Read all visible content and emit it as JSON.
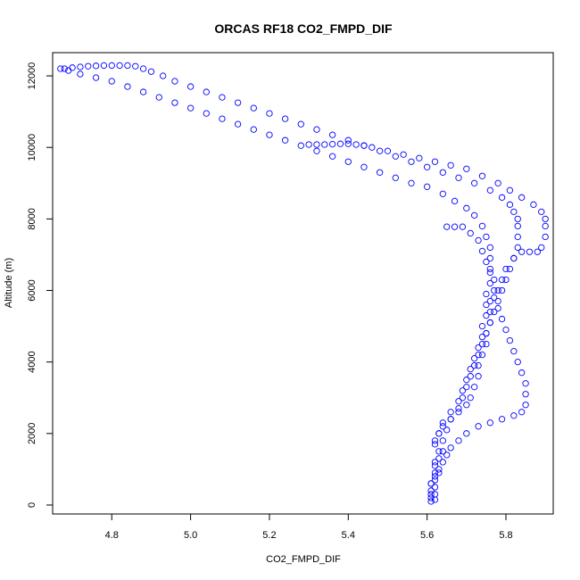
{
  "chart_data": {
    "type": "scatter",
    "title": "ORCAS RF18 CO2_FMPD_DIF",
    "xlabel": "CO2_FMPD_DIF",
    "ylabel": "Altitude (m)",
    "xlim": [
      4.65,
      5.92
    ],
    "ylim": [
      -250,
      12650
    ],
    "x_ticks": [
      4.8,
      5.0,
      5.2,
      5.4,
      5.6,
      5.8
    ],
    "x_tick_labels": [
      "4.8",
      "5.0",
      "5.2",
      "5.4",
      "5.6",
      "5.8"
    ],
    "y_ticks": [
      0,
      2000,
      4000,
      6000,
      8000,
      10000,
      12000
    ],
    "y_tick_labels": [
      "0",
      "2000",
      "4000",
      "6000",
      "8000",
      "10000",
      "12000"
    ],
    "grid": false,
    "marker": "open-circle",
    "marker_color": "#0000ff",
    "series": [
      {
        "points": [
          [
            5.61,
            100
          ],
          [
            5.61,
            300
          ],
          [
            5.62,
            500
          ],
          [
            5.62,
            700
          ],
          [
            5.63,
            900
          ],
          [
            5.62,
            1100
          ],
          [
            5.63,
            1300
          ],
          [
            5.64,
            1500
          ],
          [
            5.62,
            1700
          ],
          [
            5.63,
            2000
          ],
          [
            5.64,
            2200
          ],
          [
            5.66,
            2400
          ],
          [
            5.68,
            2600
          ],
          [
            5.7,
            2800
          ],
          [
            5.71,
            3000
          ],
          [
            5.72,
            3300
          ],
          [
            5.73,
            3600
          ],
          [
            5.73,
            3900
          ],
          [
            5.74,
            4200
          ],
          [
            5.75,
            4500
          ],
          [
            5.75,
            4800
          ],
          [
            5.76,
            5100
          ],
          [
            5.76,
            5400
          ],
          [
            5.76,
            5700
          ],
          [
            5.77,
            6000
          ],
          [
            5.77,
            6300
          ],
          [
            5.76,
            6600
          ],
          [
            5.76,
            6900
          ],
          [
            5.76,
            7200
          ],
          [
            5.75,
            7500
          ],
          [
            5.74,
            7800
          ],
          [
            5.72,
            8100
          ],
          [
            5.7,
            8300
          ],
          [
            5.67,
            8500
          ],
          [
            5.64,
            8700
          ],
          [
            5.6,
            8900
          ],
          [
            5.56,
            9000
          ],
          [
            5.52,
            9150
          ],
          [
            5.48,
            9300
          ],
          [
            5.44,
            9450
          ],
          [
            5.4,
            9600
          ],
          [
            5.36,
            9750
          ],
          [
            5.32,
            9900
          ],
          [
            5.28,
            10050
          ],
          [
            5.24,
            10200
          ],
          [
            5.2,
            10350
          ],
          [
            5.16,
            10500
          ],
          [
            5.12,
            10650
          ],
          [
            5.08,
            10800
          ],
          [
            5.04,
            10950
          ],
          [
            5.0,
            11100
          ],
          [
            4.96,
            11250
          ],
          [
            4.92,
            11400
          ],
          [
            4.88,
            11550
          ],
          [
            4.84,
            11700
          ],
          [
            4.8,
            11850
          ],
          [
            4.76,
            11950
          ],
          [
            4.72,
            12050
          ],
          [
            4.69,
            12150
          ],
          [
            4.67,
            12200
          ],
          [
            4.68,
            12200
          ],
          [
            4.7,
            12230
          ],
          [
            4.72,
            12250
          ],
          [
            4.74,
            12270
          ],
          [
            4.76,
            12280
          ],
          [
            4.78,
            12290
          ],
          [
            4.8,
            12290
          ],
          [
            4.82,
            12290
          ],
          [
            4.84,
            12290
          ],
          [
            4.86,
            12270
          ],
          [
            4.88,
            12200
          ],
          [
            4.9,
            12120
          ],
          [
            4.93,
            12000
          ],
          [
            4.96,
            11850
          ],
          [
            5.0,
            11700
          ],
          [
            5.04,
            11550
          ],
          [
            5.08,
            11400
          ],
          [
            5.12,
            11250
          ],
          [
            5.16,
            11100
          ],
          [
            5.2,
            10950
          ],
          [
            5.24,
            10800
          ],
          [
            5.28,
            10650
          ],
          [
            5.32,
            10500
          ],
          [
            5.36,
            10350
          ],
          [
            5.4,
            10200
          ],
          [
            5.44,
            10050
          ],
          [
            5.48,
            9900
          ],
          [
            5.52,
            9750
          ],
          [
            5.56,
            9600
          ],
          [
            5.6,
            9450
          ],
          [
            5.64,
            9300
          ],
          [
            5.68,
            9150
          ],
          [
            5.72,
            9000
          ],
          [
            5.76,
            8800
          ],
          [
            5.79,
            8600
          ],
          [
            5.81,
            8400
          ],
          [
            5.82,
            8200
          ],
          [
            5.83,
            8000
          ],
          [
            5.83,
            7800
          ],
          [
            5.83,
            7500
          ],
          [
            5.83,
            7200
          ],
          [
            5.82,
            6900
          ],
          [
            5.81,
            6600
          ],
          [
            5.8,
            6300
          ],
          [
            5.79,
            6000
          ],
          [
            5.78,
            5700
          ],
          [
            5.77,
            5400
          ],
          [
            5.76,
            5100
          ],
          [
            5.75,
            4800
          ],
          [
            5.74,
            4500
          ],
          [
            5.73,
            4200
          ],
          [
            5.72,
            3900
          ],
          [
            5.71,
            3600
          ],
          [
            5.7,
            3300
          ],
          [
            5.69,
            3000
          ],
          [
            5.68,
            2700
          ],
          [
            5.66,
            2400
          ],
          [
            5.65,
            2100
          ],
          [
            5.64,
            1800
          ],
          [
            5.63,
            1500
          ],
          [
            5.62,
            1200
          ],
          [
            5.62,
            900
          ],
          [
            5.61,
            600
          ],
          [
            5.62,
            300
          ],
          [
            5.62,
            150
          ],
          [
            5.3,
            10080
          ],
          [
            5.32,
            10080
          ],
          [
            5.34,
            10080
          ],
          [
            5.36,
            10090
          ],
          [
            5.38,
            10100
          ],
          [
            5.4,
            10100
          ],
          [
            5.42,
            10080
          ],
          [
            5.44,
            10050
          ],
          [
            5.46,
            10000
          ],
          [
            5.5,
            9900
          ],
          [
            5.54,
            9800
          ],
          [
            5.58,
            9700
          ],
          [
            5.62,
            9600
          ],
          [
            5.66,
            9500
          ],
          [
            5.7,
            9400
          ],
          [
            5.74,
            9200
          ],
          [
            5.78,
            9000
          ],
          [
            5.81,
            8800
          ],
          [
            5.84,
            8600
          ],
          [
            5.87,
            8400
          ],
          [
            5.89,
            8200
          ],
          [
            5.9,
            8000
          ],
          [
            5.9,
            7800
          ],
          [
            5.9,
            7500
          ],
          [
            5.89,
            7200
          ],
          [
            5.88,
            7080
          ],
          [
            5.86,
            7080
          ],
          [
            5.84,
            7080
          ],
          [
            5.82,
            6900
          ],
          [
            5.8,
            6600
          ],
          [
            5.79,
            6300
          ],
          [
            5.78,
            6000
          ],
          [
            5.77,
            5800
          ],
          [
            5.78,
            5500
          ],
          [
            5.79,
            5200
          ],
          [
            5.8,
            4900
          ],
          [
            5.81,
            4600
          ],
          [
            5.82,
            4300
          ],
          [
            5.83,
            4000
          ],
          [
            5.84,
            3700
          ],
          [
            5.85,
            3400
          ],
          [
            5.85,
            3100
          ],
          [
            5.85,
            2800
          ],
          [
            5.84,
            2600
          ],
          [
            5.82,
            2500
          ],
          [
            5.79,
            2400
          ],
          [
            5.76,
            2300
          ],
          [
            5.73,
            2200
          ],
          [
            5.7,
            2000
          ],
          [
            5.68,
            1800
          ],
          [
            5.66,
            1600
          ],
          [
            5.65,
            1400
          ],
          [
            5.64,
            1200
          ],
          [
            5.63,
            1000
          ],
          [
            5.62,
            800
          ],
          [
            5.61,
            600
          ],
          [
            5.61,
            400
          ],
          [
            5.61,
            200
          ],
          [
            5.65,
            7780
          ],
          [
            5.67,
            7780
          ],
          [
            5.69,
            7780
          ],
          [
            5.71,
            7600
          ],
          [
            5.73,
            7400
          ],
          [
            5.74,
            7100
          ],
          [
            5.75,
            6800
          ],
          [
            5.76,
            6500
          ],
          [
            5.76,
            6200
          ],
          [
            5.75,
            5900
          ],
          [
            5.75,
            5600
          ],
          [
            5.75,
            5300
          ],
          [
            5.74,
            5000
          ],
          [
            5.74,
            4700
          ],
          [
            5.73,
            4400
          ],
          [
            5.72,
            4100
          ],
          [
            5.71,
            3800
          ],
          [
            5.7,
            3500
          ],
          [
            5.69,
            3200
          ],
          [
            5.68,
            2900
          ],
          [
            5.66,
            2600
          ],
          [
            5.64,
            2300
          ],
          [
            5.63,
            2000
          ],
          [
            5.62,
            1800
          ]
        ]
      }
    ]
  }
}
